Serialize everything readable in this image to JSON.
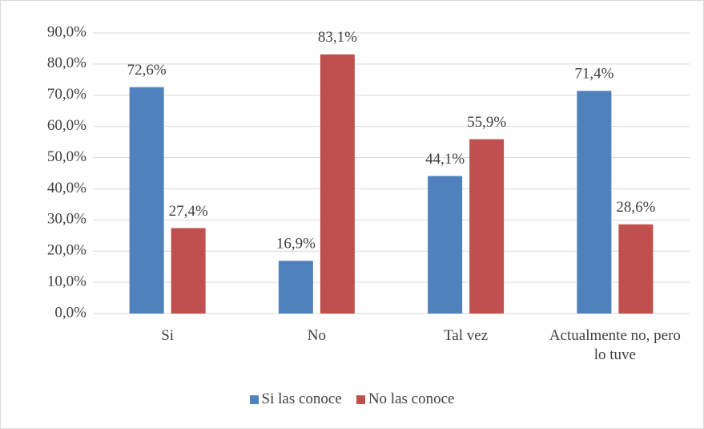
{
  "chart_data": {
    "type": "bar",
    "categories": [
      "Si",
      "No",
      "Tal vez",
      "Actualmente no, pero lo tuve"
    ],
    "series": [
      {
        "name": "Si las conoce",
        "color": "#4f81bd",
        "values": [
          72.6,
          16.9,
          44.1,
          71.4
        ],
        "value_labels": [
          "72,6%",
          "16,9%",
          "44,1%",
          "71,4%"
        ]
      },
      {
        "name": "No las conoce",
        "color": "#c0504d",
        "values": [
          27.4,
          83.1,
          55.9,
          28.6
        ],
        "value_labels": [
          "27,4%",
          "83,1%",
          "55,9%",
          "28,6%"
        ]
      }
    ],
    "ylim": [
      0,
      90
    ],
    "yticks": [
      {
        "value": 0,
        "label": "0,0%"
      },
      {
        "value": 10,
        "label": "10,0%"
      },
      {
        "value": 20,
        "label": "20,0%"
      },
      {
        "value": 30,
        "label": "30,0%"
      },
      {
        "value": 40,
        "label": "40,0%"
      },
      {
        "value": 50,
        "label": "50,0%"
      },
      {
        "value": 60,
        "label": "60,0%"
      },
      {
        "value": 70,
        "label": "70,0%"
      },
      {
        "value": 80,
        "label": "80,0%"
      },
      {
        "value": 90,
        "label": "90,0%"
      }
    ],
    "grid": true,
    "legend": "bottom"
  }
}
